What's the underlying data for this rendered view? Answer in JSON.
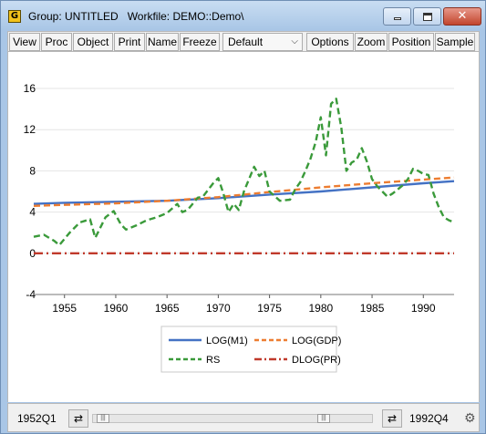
{
  "window": {
    "title": "Group: UNTITLED   Workfile: DEMO::Demo\\",
    "app_icon_letter": "G",
    "close_glyph": "✕"
  },
  "toolbar": {
    "view": "View",
    "proc": "Proc",
    "object": "Object",
    "print": "Print",
    "name": "Name",
    "freeze": "Freeze",
    "template_select": "Default",
    "options": "Options",
    "zoom": "Zoom",
    "position": "Position",
    "sample": "Sample"
  },
  "status": {
    "range_start": "1952Q1",
    "range_end": "1992Q4",
    "swap_icon": "⇄",
    "gear_icon": "⚙"
  },
  "colors": {
    "log_m1": "#4472c4",
    "log_gdp": "#ed7d31",
    "rs": "#3a9a3a",
    "dlog_pr": "#c0392b"
  },
  "chart_data": {
    "type": "line",
    "ylim": [
      -4,
      16
    ],
    "yticks": [
      -4,
      0,
      4,
      8,
      12,
      16
    ],
    "xlim": [
      1952.0,
      1993.0
    ],
    "xticks": [
      1955,
      1960,
      1965,
      1970,
      1975,
      1980,
      1985,
      1990
    ],
    "grid": "horizontal",
    "legend_position": "bottom-center",
    "series": [
      {
        "name": "LOG(M1)",
        "style": "solid",
        "x": [
          1952,
          1955,
          1960,
          1965,
          1970,
          1975,
          1980,
          1985,
          1990,
          1993
        ],
        "y": [
          4.8,
          4.9,
          5.0,
          5.1,
          5.35,
          5.7,
          6.0,
          6.4,
          6.8,
          7.0
        ]
      },
      {
        "name": "LOG(GDP)",
        "style": "dashed",
        "x": [
          1952,
          1955,
          1960,
          1965,
          1970,
          1975,
          1980,
          1985,
          1990,
          1993
        ],
        "y": [
          4.6,
          4.7,
          4.85,
          5.1,
          5.45,
          5.95,
          6.4,
          6.8,
          7.15,
          7.35
        ]
      },
      {
        "name": "RS",
        "style": "dashed",
        "x": [
          1952.0,
          1953.0,
          1954.0,
          1954.5,
          1955.5,
          1956.5,
          1957.5,
          1958.0,
          1959.0,
          1959.8,
          1960.5,
          1961.0,
          1962.0,
          1963.0,
          1964.0,
          1965.0,
          1966.0,
          1966.5,
          1967.0,
          1968.0,
          1968.5,
          1969.5,
          1970.0,
          1970.5,
          1971.0,
          1971.5,
          1972.0,
          1972.5,
          1973.5,
          1974.0,
          1974.5,
          1975.0,
          1976.0,
          1977.0,
          1977.5,
          1978.0,
          1978.5,
          1979.0,
          1979.5,
          1980.0,
          1980.5,
          1981.0,
          1981.5,
          1982.0,
          1982.5,
          1983.0,
          1983.5,
          1984.0,
          1984.5,
          1985.0,
          1985.5,
          1986.0,
          1986.5,
          1987.0,
          1987.5,
          1988.0,
          1988.5,
          1989.0,
          1989.5,
          1990.0,
          1990.5,
          1991.0,
          1991.5,
          1992.0,
          1992.5,
          1993.0
        ],
        "y": [
          1.6,
          1.8,
          1.2,
          0.8,
          2.0,
          3.0,
          3.3,
          1.5,
          3.5,
          4.1,
          2.8,
          2.3,
          2.7,
          3.2,
          3.5,
          3.9,
          4.8,
          4.0,
          4.2,
          5.4,
          5.5,
          6.8,
          7.3,
          5.8,
          4.0,
          4.8,
          4.2,
          6.0,
          8.4,
          7.5,
          8.0,
          6.0,
          5.1,
          5.2,
          6.2,
          6.9,
          8.0,
          9.2,
          10.8,
          13.2,
          9.5,
          14.5,
          15.0,
          12.2,
          8.0,
          8.8,
          9.1,
          10.2,
          8.9,
          7.2,
          6.5,
          6.0,
          5.5,
          5.8,
          6.2,
          6.6,
          7.2,
          8.2,
          8.0,
          7.7,
          7.6,
          5.8,
          4.5,
          3.5,
          3.2,
          3.0
        ]
      },
      {
        "name": "DLOG(PR)",
        "style": "dashdot",
        "x": [
          1952,
          1993
        ],
        "y": [
          0.0,
          0.0
        ]
      }
    ]
  }
}
